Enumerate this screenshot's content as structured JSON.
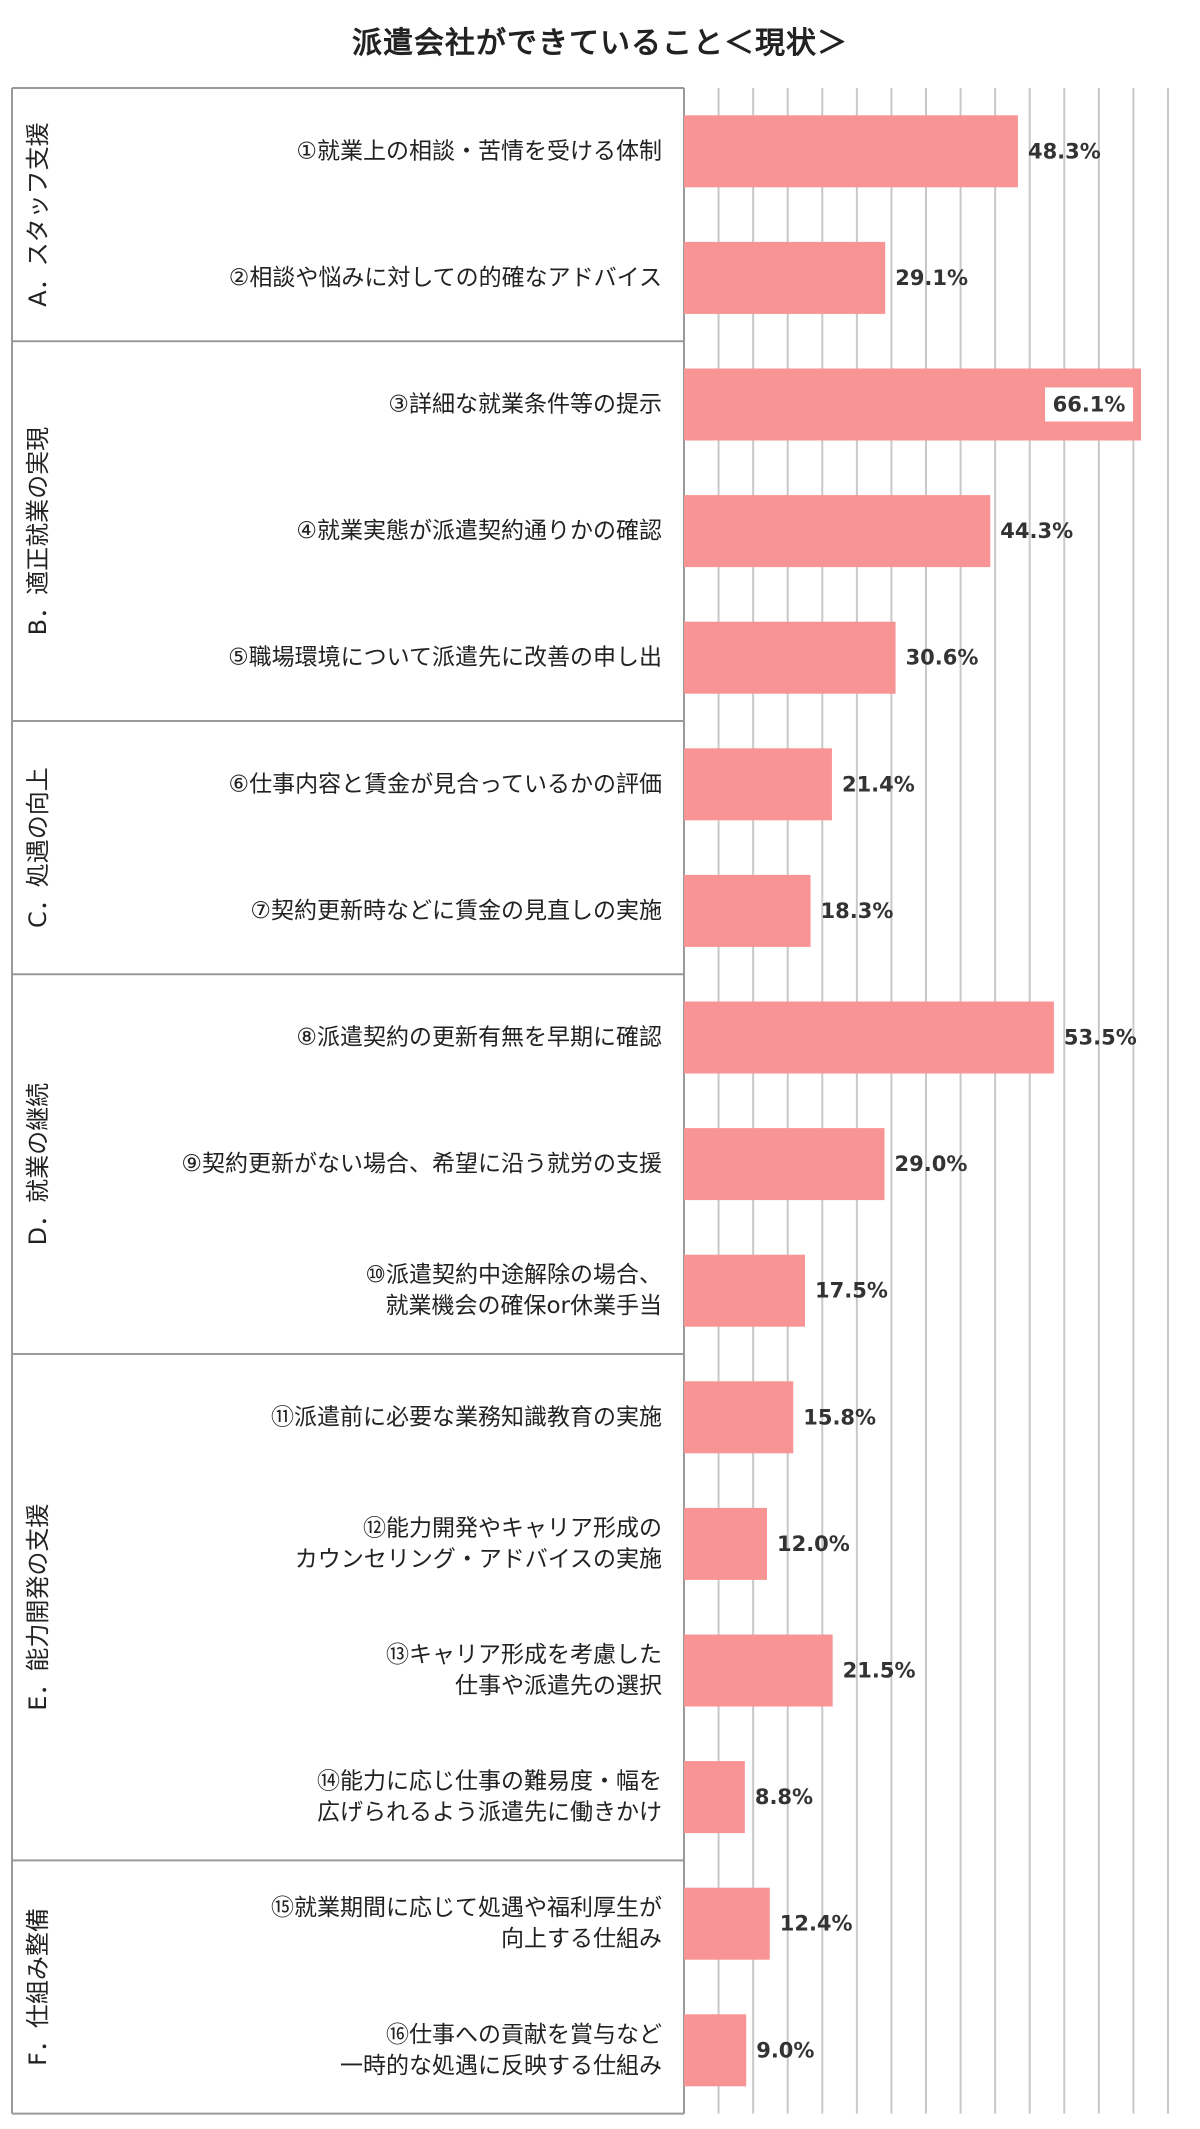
{
  "chart_data": {
    "type": "bar",
    "orientation": "horizontal",
    "title": "派遣会社ができていること＜現状＞",
    "xlim": [
      0,
      70
    ],
    "grid": true,
    "bar_color": "#f99494",
    "groups": [
      {
        "label": "A．スタッフ支援",
        "items": [
          1,
          2
        ]
      },
      {
        "label": "B．適正就業の実現",
        "items": [
          3,
          4,
          5
        ]
      },
      {
        "label": "C．処遇の向上",
        "items": [
          6,
          7
        ]
      },
      {
        "label": "D．就業の継続",
        "items": [
          8,
          9,
          10
        ]
      },
      {
        "label": "E．能力開発の支援",
        "items": [
          11,
          12,
          13,
          14
        ]
      },
      {
        "label": "F．仕組み整備",
        "items": [
          15,
          16
        ]
      }
    ],
    "categories": [
      [
        "①就業上の相談・苦情を受ける体制"
      ],
      [
        "②相談や悩みに対しての的確なアドバイス"
      ],
      [
        "③詳細な就業条件等の提示"
      ],
      [
        "④就業実態が派遣契約通りかの確認"
      ],
      [
        "⑤職場環境について派遣先に改善の申し出"
      ],
      [
        "⑥仕事内容と賃金が見合っているかの評価"
      ],
      [
        "⑦契約更新時などに賃金の見直しの実施"
      ],
      [
        "⑧派遣契約の更新有無を早期に確認"
      ],
      [
        "⑨契約更新がない場合、希望に沿う就労の支援"
      ],
      [
        "⑩派遣契約中途解除の場合、",
        "就業機会の確保or休業手当"
      ],
      [
        "⑪派遣前に必要な業務知識教育の実施"
      ],
      [
        "⑫能力開発やキャリア形成の",
        "カウンセリング・アドバイスの実施"
      ],
      [
        "⑬キャリア形成を考慮した",
        "仕事や派遣先の選択"
      ],
      [
        "⑭能力に応じ仕事の難易度・幅を",
        "広げられるよう派遣先に働きかけ"
      ],
      [
        "⑮就業期間に応じて処遇や福利厚生が",
        "向上する仕組み"
      ],
      [
        "⑯仕事への貢献を賞与など",
        "一時的な処遇に反映する仕組み"
      ]
    ],
    "values": [
      48.3,
      29.1,
      66.1,
      44.3,
      30.6,
      21.4,
      18.3,
      53.5,
      29.0,
      17.5,
      15.8,
      12.0,
      21.5,
      8.8,
      12.4,
      9.0
    ],
    "value_labels": [
      "48.3%",
      "29.1%",
      "66.1%",
      "44.3%",
      "30.6%",
      "21.4%",
      "18.3%",
      "53.5%",
      "29.0%",
      "17.5%",
      "15.8%",
      "12.0%",
      "21.5%",
      "8.8%",
      "12.4%",
      "9.0%"
    ]
  }
}
